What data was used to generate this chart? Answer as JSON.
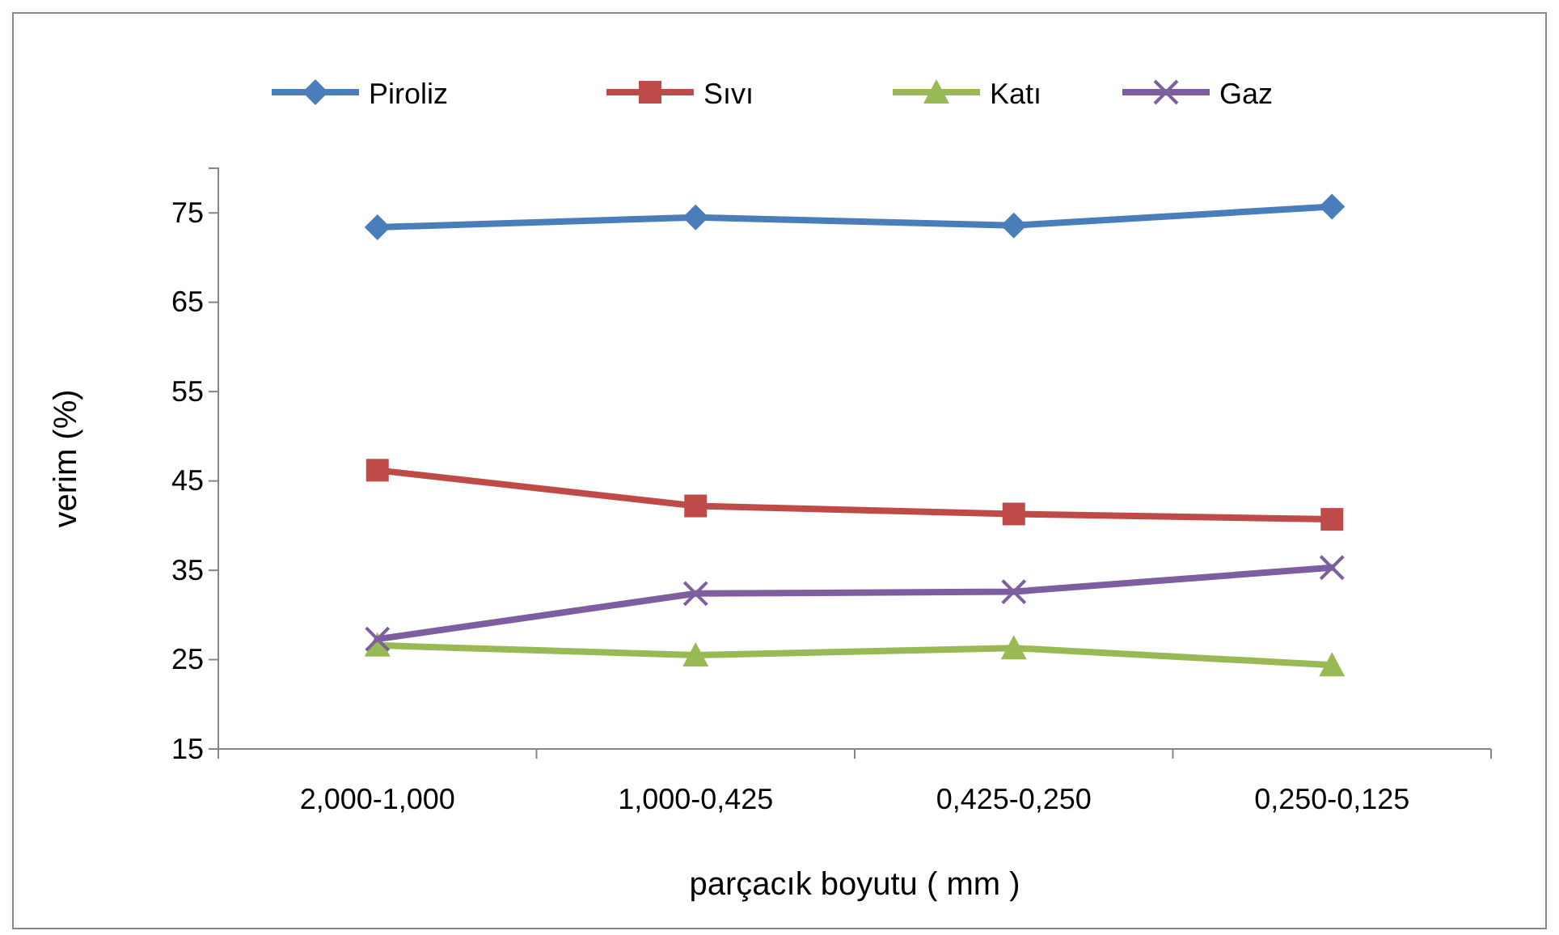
{
  "chart_data": {
    "type": "line",
    "xlabel": "parçacık boyutu ( mm )",
    "ylabel": "verim (%)",
    "categories": [
      "2,000-1,000",
      "1,000-0,425",
      "0,425-0,250",
      "0,250-0,125"
    ],
    "series": [
      {
        "name": "Piroliz",
        "color": "#4a7ebb",
        "marker": "diamond",
        "values": [
          73.4,
          74.5,
          73.6,
          75.7
        ]
      },
      {
        "name": "Sıvı",
        "color": "#be4b48",
        "marker": "square",
        "values": [
          46.2,
          42.2,
          41.3,
          40.7
        ]
      },
      {
        "name": "Katı",
        "color": "#98b954",
        "marker": "triangle",
        "values": [
          26.6,
          25.5,
          26.3,
          24.4
        ]
      },
      {
        "name": "Gaz",
        "color": "#7d5fa0",
        "marker": "cross",
        "values": [
          27.3,
          32.4,
          32.6,
          35.3
        ]
      }
    ],
    "ylim": [
      15,
      80
    ],
    "yticks": [
      15,
      25,
      35,
      45,
      55,
      65,
      75
    ],
    "grid": false,
    "legend": "top",
    "line_style": "solid"
  }
}
